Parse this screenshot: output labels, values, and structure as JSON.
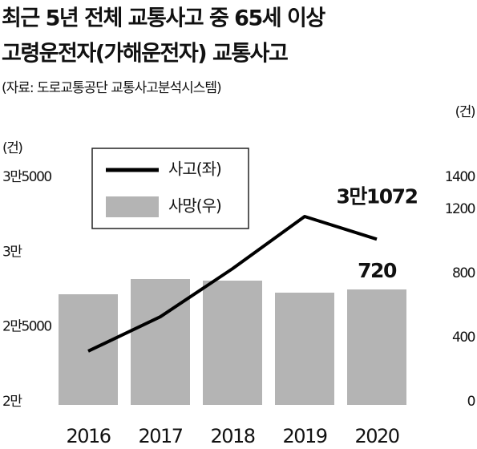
{
  "chart_data": {
    "type": "bar-line",
    "title_lines": [
      "최근 5년 전체 교통사고 중 65세 이상",
      "고령운전자(가해운전자) 교통사고"
    ],
    "source": "(자료: 도로교통공단 교통사고분석시스템)",
    "y_unit": "(건)",
    "y2_unit": "(건)",
    "categories": [
      "2016",
      "2017",
      "2018",
      "2019",
      "2020"
    ],
    "series": [
      {
        "name": "사고(좌)",
        "type": "line",
        "color": "#000000",
        "values": [
          23590,
          25890,
          29100,
          32590,
          31072
        ],
        "value_labels": [
          null,
          null,
          null,
          null,
          "3만1072"
        ]
      },
      {
        "name": "사망(우)",
        "type": "bar",
        "axis": "y2",
        "color": "#b4b4b4",
        "values": [
          690,
          785,
          775,
          700,
          720
        ],
        "value_labels": [
          null,
          null,
          null,
          null,
          "720"
        ]
      }
    ],
    "ylim": [
      20000,
      35000
    ],
    "yticks": [
      {
        "value": 20000,
        "label": "2만"
      },
      {
        "value": 25000,
        "label": "2만5000"
      },
      {
        "value": 30000,
        "label": "3만"
      },
      {
        "value": 35000,
        "label": "3만5000"
      }
    ],
    "y2lim": [
      0,
      1400
    ],
    "y2ticks": [
      0,
      400,
      800,
      1200,
      1400
    ],
    "grid": false
  }
}
